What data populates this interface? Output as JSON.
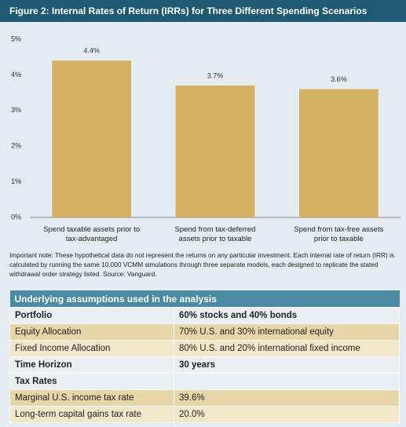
{
  "chart_data": {
    "type": "bar",
    "title": "Figure 2: Internal Rates of Return (IRRs) for Three Different Spending Scenarios",
    "categories": [
      "Spend taxable assets prior to tax-advantaged",
      "Spend from tax-deferred assets prior to taxable",
      "Spend from tax-free assets prior to taxable"
    ],
    "values": [
      4.4,
      3.7,
      3.6
    ],
    "value_labels": [
      "4.4%",
      "3.7%",
      "3.6%"
    ],
    "color": "#d4b062",
    "ylim": [
      0,
      5
    ],
    "yticks": [
      {
        "value": 0,
        "label": "0%"
      },
      {
        "value": 1,
        "label": "1%"
      },
      {
        "value": 2,
        "label": "2%"
      },
      {
        "value": 3,
        "label": "3%"
      },
      {
        "value": 4,
        "label": "4%"
      },
      {
        "value": 5,
        "label": "5%"
      }
    ],
    "grid": false,
    "note": "Important note: These hypothetical data do not represent the returns on any particular investment. Each internal rate of return (IRR) is calculated by running the same 10,000 VCMM simulations through three separate models, each designed to replicate the stated withdrawal order strategy listed. Source: Vanguard."
  },
  "table": {
    "title": "Underlying assumptions used in the analysis",
    "rows": [
      [
        "Portfolio",
        "60% stocks and 40% bonds"
      ],
      [
        "Equity Allocation",
        "70% U.S. and 30% international equity"
      ],
      [
        "Fixed Income Allocation",
        "80% U.S. and 20% international fixed income"
      ],
      [
        "Time Horizon",
        "30 years"
      ],
      [
        "Tax Rates"
      ],
      [
        "Marginal U.S. income tax rate",
        "39.6%"
      ],
      [
        "Long-term capital gains tax rate",
        "20.0%"
      ]
    ]
  }
}
